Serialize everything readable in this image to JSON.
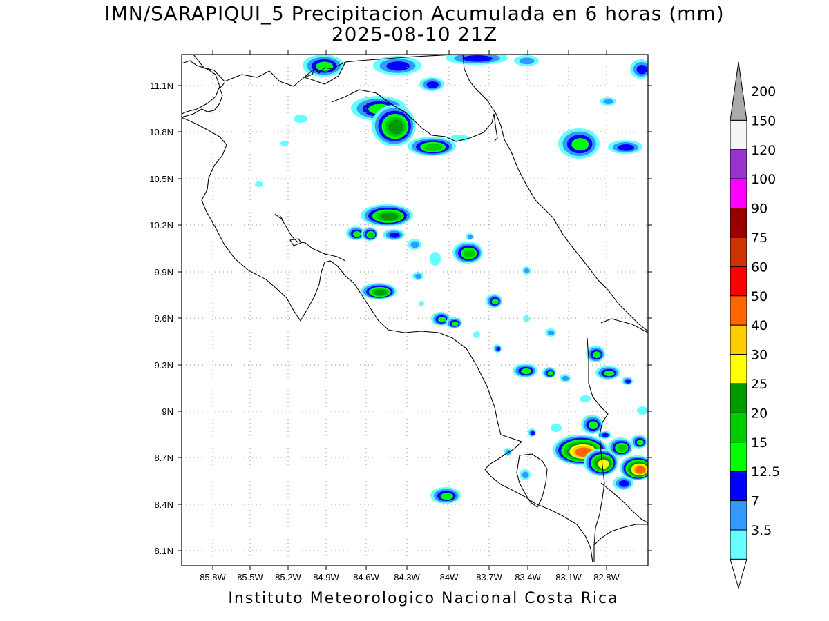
{
  "title": {
    "line1": "IMN/SARAPIQUI_5 Precipitacion Acumulada en 6 horas (mm)",
    "line2": "2025-08-10 21Z"
  },
  "footer": "Instituto Meteorologico Nacional Costa Rica",
  "axes": {
    "x_ticks": [
      "85.8W",
      "85.5W",
      "85.2W",
      "84.9W",
      "84.6W",
      "84.3W",
      "84W",
      "83.7W",
      "83.4W",
      "83.1W",
      "82.8W"
    ],
    "y_ticks": [
      "11.1N",
      "10.8N",
      "10.5N",
      "10.2N",
      "9.9N",
      "9.6N",
      "9.3N",
      "9N",
      "8.7N",
      "8.4N",
      "8.1N"
    ],
    "lon_range": [
      -86.0,
      -82.5
    ],
    "lat_range": [
      8.0,
      11.3
    ],
    "grid": "dotted"
  },
  "colorbar": {
    "labels": [
      "3.5",
      "7",
      "12.5",
      "15",
      "20",
      "25",
      "30",
      "40",
      "50",
      "60",
      "75",
      "90",
      "100",
      "120",
      "150",
      "200"
    ],
    "colors": [
      "#66ffff",
      "#3399ff",
      "#0000ff",
      "#00ff00",
      "#00cc00",
      "#009900",
      "#ffff00",
      "#ffcc00",
      "#ff6600",
      "#ff0000",
      "#cc3300",
      "#990000",
      "#ff00ff",
      "#9933cc",
      "#f5f5f5",
      "#aaaaaa"
    ]
  },
  "precip_palette": {
    "c3_5": "#66ffff",
    "c7": "#3399ff",
    "c12_5": "#0000ff",
    "c15": "#00ff00",
    "c20": "#00cc00",
    "c25": "#009900",
    "c30": "#ffff00",
    "c40": "#ffcc00",
    "c50": "#ff6600",
    "c60": "#ff0000"
  }
}
